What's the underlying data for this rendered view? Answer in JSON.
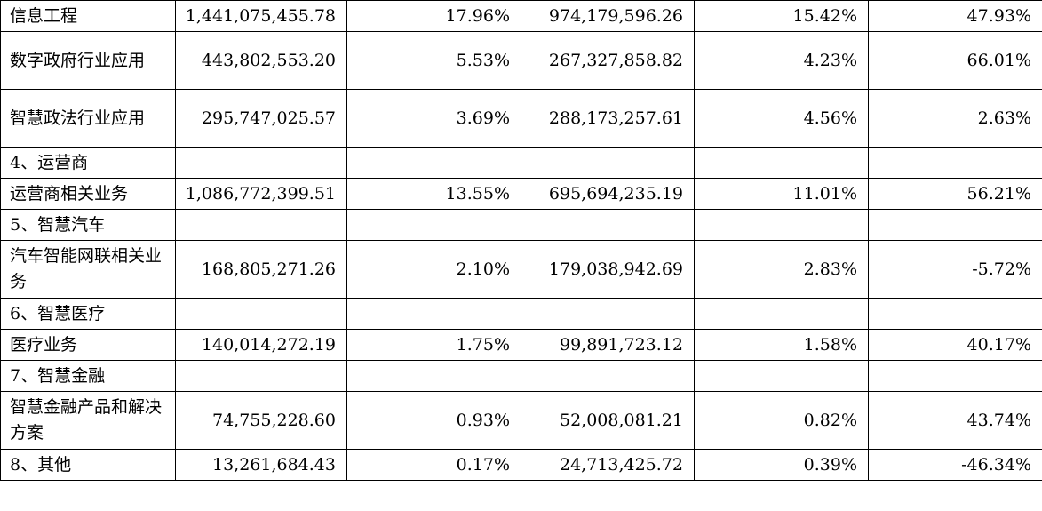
{
  "table": {
    "rows": [
      {
        "label": "信息工程",
        "revenue": "1,441,075,455.78",
        "revenue_pct": "17.96%",
        "cost": "974,179,596.26",
        "cost_pct": "15.42%",
        "change": "47.93%"
      },
      {
        "label": "数字政府行业应用",
        "revenue": "443,802,553.20",
        "revenue_pct": "5.53%",
        "cost": "267,327,858.82",
        "cost_pct": "4.23%",
        "change": "66.01%"
      },
      {
        "label": "智慧政法行业应用",
        "revenue": "295,747,025.57",
        "revenue_pct": "3.69%",
        "cost": "288,173,257.61",
        "cost_pct": "4.56%",
        "change": "2.63%"
      },
      {
        "label": "4、运营商",
        "revenue": "",
        "revenue_pct": "",
        "cost": "",
        "cost_pct": "",
        "change": ""
      },
      {
        "label": "运营商相关业务",
        "revenue": "1,086,772,399.51",
        "revenue_pct": "13.55%",
        "cost": "695,694,235.19",
        "cost_pct": "11.01%",
        "change": "56.21%"
      },
      {
        "label": "5、智慧汽车",
        "revenue": "",
        "revenue_pct": "",
        "cost": "",
        "cost_pct": "",
        "change": ""
      },
      {
        "label": "汽车智能网联相关业务",
        "revenue": "168,805,271.26",
        "revenue_pct": "2.10%",
        "cost": "179,038,942.69",
        "cost_pct": "2.83%",
        "change": "-5.72%"
      },
      {
        "label": "6、智慧医疗",
        "revenue": "",
        "revenue_pct": "",
        "cost": "",
        "cost_pct": "",
        "change": ""
      },
      {
        "label": "医疗业务",
        "revenue": "140,014,272.19",
        "revenue_pct": "1.75%",
        "cost": "99,891,723.12",
        "cost_pct": "1.58%",
        "change": "40.17%"
      },
      {
        "label": "7、智慧金融",
        "revenue": "",
        "revenue_pct": "",
        "cost": "",
        "cost_pct": "",
        "change": ""
      },
      {
        "label": "智慧金融产品和解决方案",
        "revenue": "74,755,228.60",
        "revenue_pct": "0.93%",
        "cost": "52,008,081.21",
        "cost_pct": "0.82%",
        "change": "43.74%"
      },
      {
        "label": "8、其他",
        "revenue": "13,261,684.43",
        "revenue_pct": "0.17%",
        "cost": "24,713,425.72",
        "cost_pct": "0.39%",
        "change": "-46.34%"
      }
    ]
  }
}
